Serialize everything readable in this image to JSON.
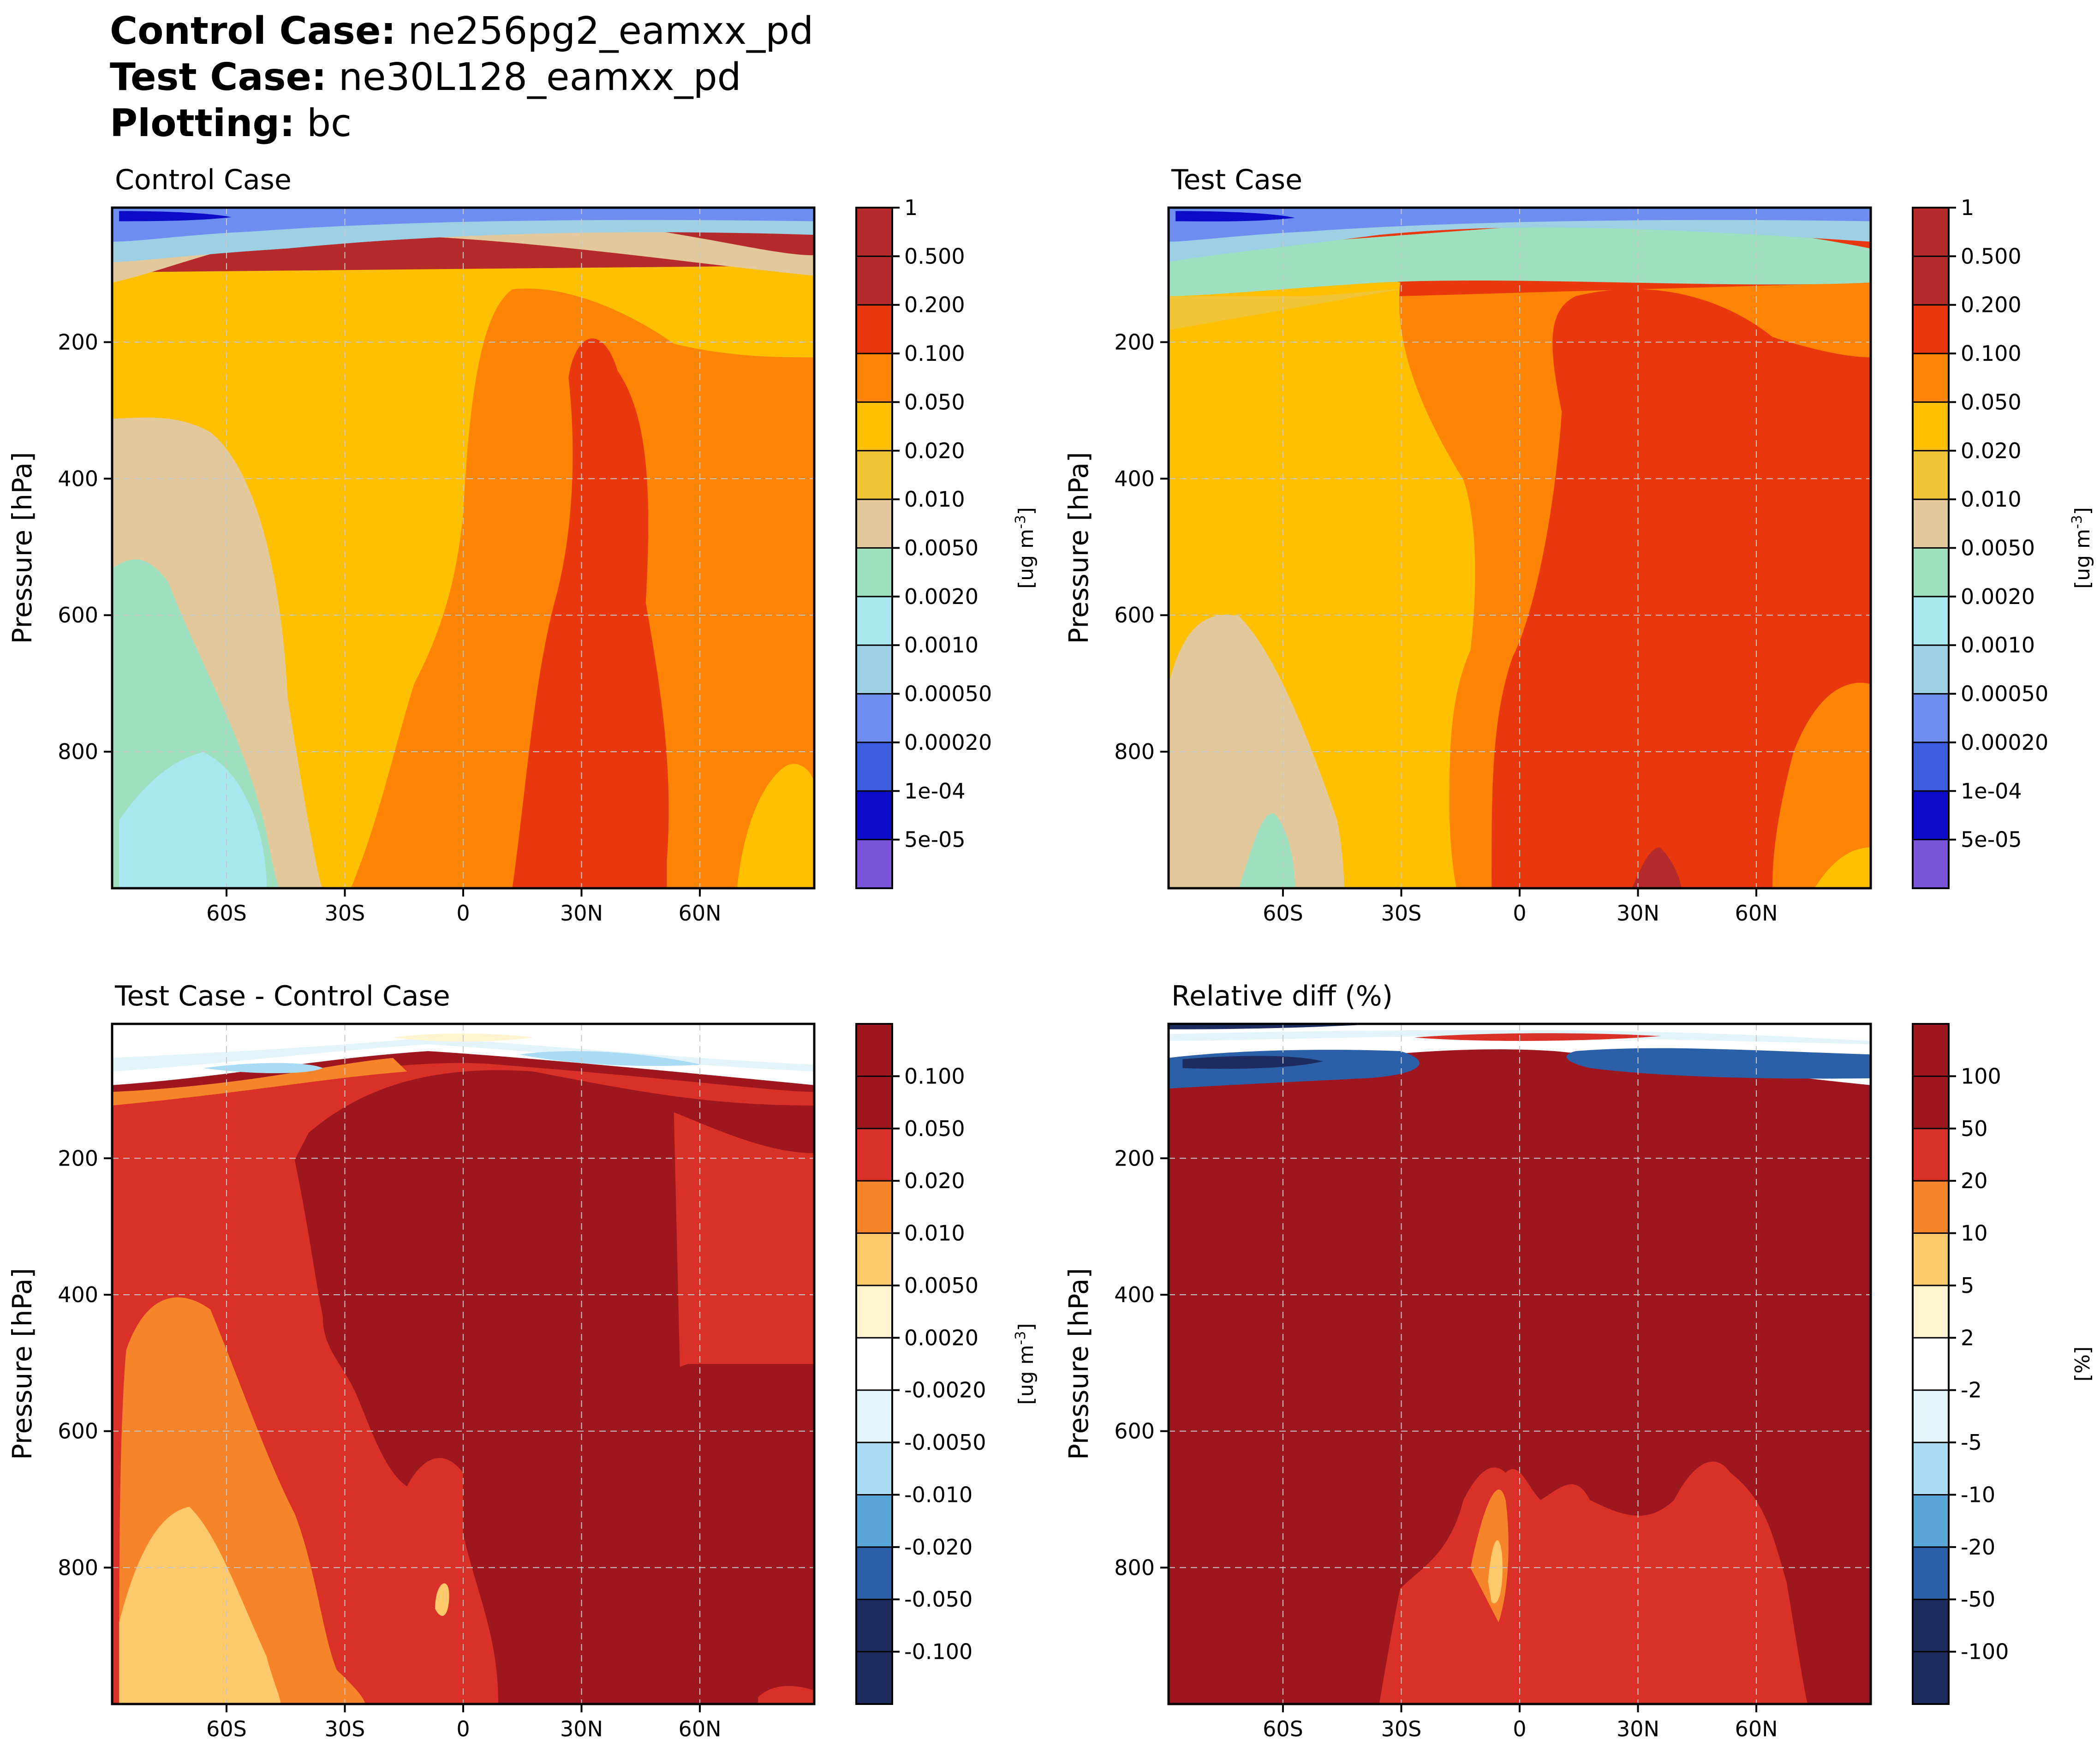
{
  "header": {
    "control_key": "Control Case",
    "control_value": "ne256pg2_eamxx_pd",
    "test_key": "Test Case",
    "test_value": "ne30L128_eamxx_pd",
    "plot_key": "Plotting",
    "plot_value": "bc",
    "separator": ":"
  },
  "chart_data": [
    {
      "type": "heatmap",
      "title": "Control Case",
      "xlabel": "",
      "ylabel": "Pressure [hPa]",
      "x_ticks": [
        "60S",
        "30S",
        "0",
        "30N",
        "60N"
      ],
      "x_tick_values": [
        -60,
        -30,
        0,
        30,
        60
      ],
      "xlim": [
        -89,
        89
      ],
      "y_ticks": [
        200,
        400,
        600,
        800
      ],
      "ylim": [
        1000,
        3
      ],
      "colorbar_label": "[ug m$^{-3}$]",
      "levels": [
        "5e-05",
        "1e-04",
        "0.00020",
        "0.00050",
        "0.0010",
        "0.0020",
        "0.0050",
        "0.010",
        "0.020",
        "0.050",
        "0.100",
        "0.200",
        "0.500",
        "1"
      ],
      "colors": [
        "#7a55d9",
        "#0c0cc8",
        "#3d5de0",
        "#6d8ef0",
        "#9dd0e5",
        "#a6e8ee",
        "#9ddfbe",
        "#e2c89a",
        "#f1c436",
        "#fec000",
        "#fd8405",
        "#e9380e",
        "#b52b2b",
        "#b52b2b"
      ]
    },
    {
      "type": "heatmap",
      "title": "Test Case",
      "xlabel": "",
      "ylabel": "Pressure [hPa]",
      "x_ticks": [
        "60S",
        "30S",
        "0",
        "30N",
        "60N"
      ],
      "x_tick_values": [
        -60,
        -30,
        0,
        30,
        60
      ],
      "xlim": [
        -89,
        89
      ],
      "y_ticks": [
        200,
        400,
        600,
        800
      ],
      "ylim": [
        1000,
        3
      ],
      "colorbar_label": "[ug m$^{-3}$]",
      "levels": [
        "5e-05",
        "1e-04",
        "0.00020",
        "0.00050",
        "0.0010",
        "0.0020",
        "0.0050",
        "0.010",
        "0.020",
        "0.050",
        "0.100",
        "0.200",
        "0.500",
        "1"
      ],
      "colors": [
        "#7a55d9",
        "#0c0cc8",
        "#3d5de0",
        "#6d8ef0",
        "#9dd0e5",
        "#a6e8ee",
        "#9ddfbe",
        "#e2c89a",
        "#f1c436",
        "#fec000",
        "#fd8405",
        "#e9380e",
        "#b52b2b",
        "#b52b2b"
      ]
    },
    {
      "type": "heatmap",
      "title": "Test Case - Control Case",
      "xlabel": "",
      "ylabel": "Pressure [hPa]",
      "x_ticks": [
        "60S",
        "30S",
        "0",
        "30N",
        "60N"
      ],
      "x_tick_values": [
        -60,
        -30,
        0,
        30,
        60
      ],
      "xlim": [
        -89,
        89
      ],
      "y_ticks": [
        200,
        400,
        600,
        800
      ],
      "ylim": [
        1000,
        3
      ],
      "colorbar_label": "[ug m$^{-3}$]",
      "levels": [
        "-0.100",
        "-0.050",
        "-0.020",
        "-0.010",
        "-0.0050",
        "-0.0020",
        "0.0020",
        "0.0050",
        "0.010",
        "0.020",
        "0.050",
        "0.100"
      ],
      "colors": [
        "#1d2b5e",
        "#1d2b5e",
        "#2b5fa8",
        "#5aa6d8",
        "#a9dcf4",
        "#e3f3fa",
        "#ffffff",
        "#fff4cf",
        "#fec96a",
        "#f6842b",
        "#d93127",
        "#9e161e",
        "#9e161e"
      ]
    },
    {
      "type": "heatmap",
      "title": "Relative diff (%)",
      "xlabel": "",
      "ylabel": "Pressure [hPa]",
      "x_ticks": [
        "60S",
        "30S",
        "0",
        "30N",
        "60N"
      ],
      "x_tick_values": [
        -60,
        -30,
        0,
        30,
        60
      ],
      "xlim": [
        -89,
        89
      ],
      "y_ticks": [
        200,
        400,
        600,
        800
      ],
      "ylim": [
        1000,
        3
      ],
      "colorbar_label": "[%]",
      "levels": [
        "-100",
        "-50",
        "-20",
        "-10",
        "-5",
        "-2",
        "2",
        "5",
        "10",
        "20",
        "50",
        "100"
      ],
      "colors": [
        "#1d2b5e",
        "#1d2b5e",
        "#2b5fa8",
        "#5aa6d8",
        "#a9dcf4",
        "#e3f3fa",
        "#ffffff",
        "#fff4cf",
        "#fec96a",
        "#f6842b",
        "#d93127",
        "#9e161e",
        "#9e161e"
      ]
    }
  ]
}
